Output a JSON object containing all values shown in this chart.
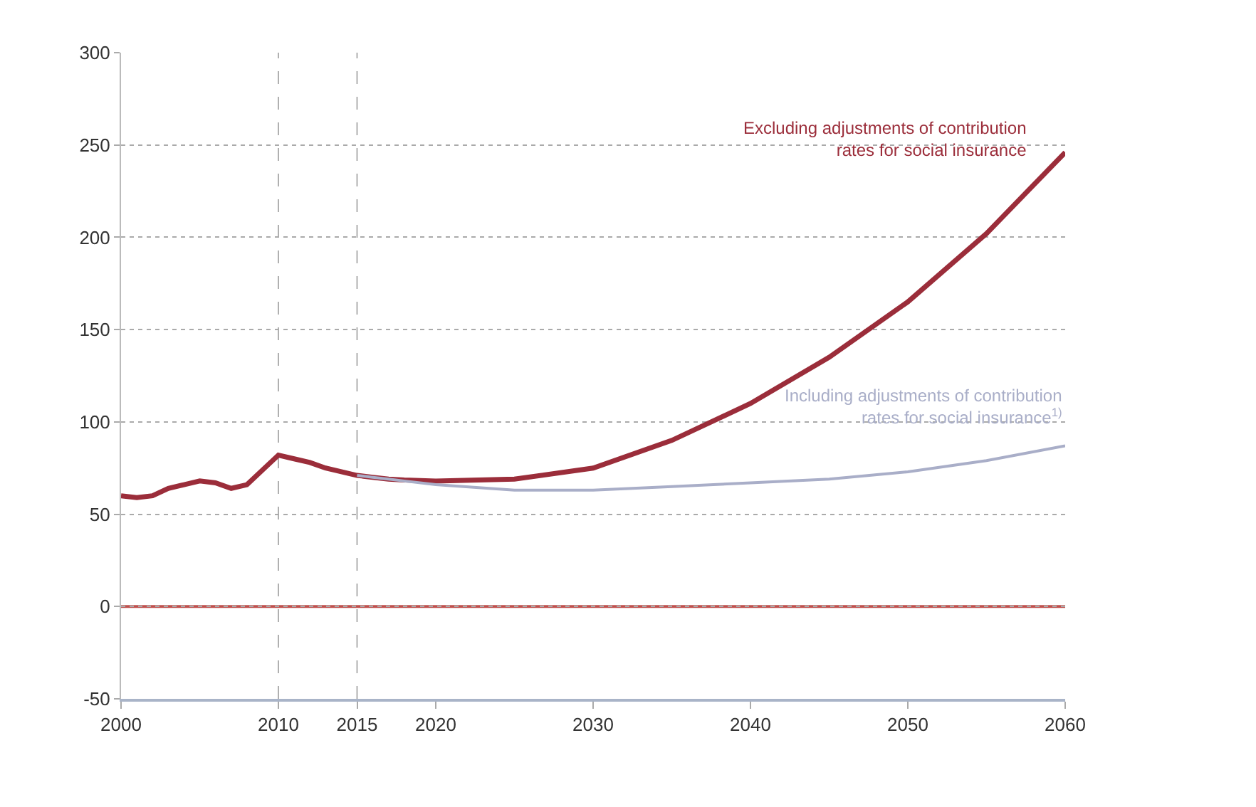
{
  "chart_data": {
    "type": "line",
    "x": [
      2000,
      2001,
      2002,
      2003,
      2004,
      2005,
      2006,
      2007,
      2008,
      2009,
      2010,
      2011,
      2012,
      2013,
      2014,
      2015,
      2016,
      2017,
      2018,
      2020,
      2025,
      2030,
      2035,
      2040,
      2045,
      2050,
      2055,
      2060
    ],
    "series": [
      {
        "name": "Excluding adjustments of contribution rates for social insurance",
        "color": "#9b2d3a",
        "values": [
          60,
          59,
          60,
          64,
          66,
          68,
          67,
          64,
          66,
          74,
          82,
          80,
          78,
          75,
          73,
          71,
          70,
          69,
          68.5,
          68,
          69,
          75,
          90,
          110,
          135,
          165,
          202,
          246
        ]
      },
      {
        "name": "Including adjustments of contribution rates for social insurance$^{1)}$",
        "color": "#a9aec8",
        "values": [
          null,
          null,
          null,
          null,
          null,
          null,
          null,
          null,
          null,
          null,
          null,
          null,
          null,
          null,
          null,
          71,
          70,
          69,
          68,
          66,
          63,
          63,
          65,
          67,
          69,
          73,
          79,
          87
        ]
      }
    ],
    "xlim": [
      2000,
      2060
    ],
    "xticks": [
      2000,
      2010,
      2015,
      2020,
      2030,
      2040,
      2050,
      2060
    ],
    "ylim": [
      -50,
      300
    ],
    "yticks": [
      -50,
      0,
      50,
      100,
      150,
      200,
      250,
      300
    ],
    "grid": "y",
    "legend": false,
    "marker": "none",
    "line_style": "solid",
    "ref_lines": [
      {
        "axis": "x",
        "value": 2010,
        "color": "#b0b0b0",
        "line_style": "dashed"
      },
      {
        "axis": "x",
        "value": 2015,
        "color": "#b0b0b0",
        "line_style": "dashed"
      },
      {
        "axis": "y",
        "value": 0,
        "color": "#c0504d",
        "line_style": "solid"
      }
    ]
  }
}
